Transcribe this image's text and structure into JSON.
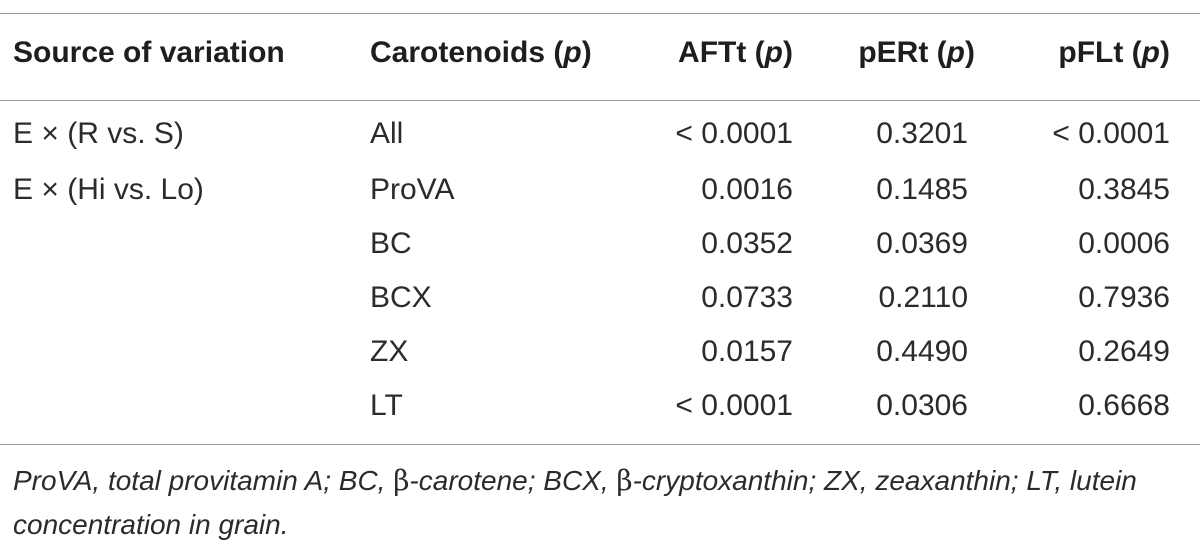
{
  "table": {
    "headers": {
      "source": "Source of variation",
      "carotenoids": "Carotenoids (",
      "aftt": "AFTt (",
      "pert": "pERt (",
      "pflt": "pFLt (",
      "p": "p",
      "close": ")"
    },
    "sources": [
      "E × (R vs. S)",
      "E × (Hi vs. Lo)"
    ],
    "rows": [
      {
        "carotenoid": "All",
        "aftt": "< 0.0001",
        "pert": "0.3201",
        "pflt": "< 0.0001"
      },
      {
        "carotenoid": "ProVA",
        "aftt": "0.0016",
        "pert": "0.1485",
        "pflt": "0.3845"
      },
      {
        "carotenoid": "BC",
        "aftt": "0.0352",
        "pert": "0.0369",
        "pflt": "0.0006"
      },
      {
        "carotenoid": "BCX",
        "aftt": "0.0733",
        "pert": "0.2110",
        "pflt": "0.7936"
      },
      {
        "carotenoid": "ZX",
        "aftt": "0.0157",
        "pert": "0.4490",
        "pflt": "0.2649"
      },
      {
        "carotenoid": "LT",
        "aftt": "< 0.0001",
        "pert": "0.0306",
        "pflt": "0.6668"
      }
    ]
  },
  "footnote": {
    "part1": "ProVA, total provitamin A; BC, ",
    "beta1": "β",
    "part2": "-carotene; BCX, ",
    "beta2": "β",
    "part3": "-cryptoxanthin; ZX, zeaxanthin; LT, lutein concentration in grain."
  }
}
